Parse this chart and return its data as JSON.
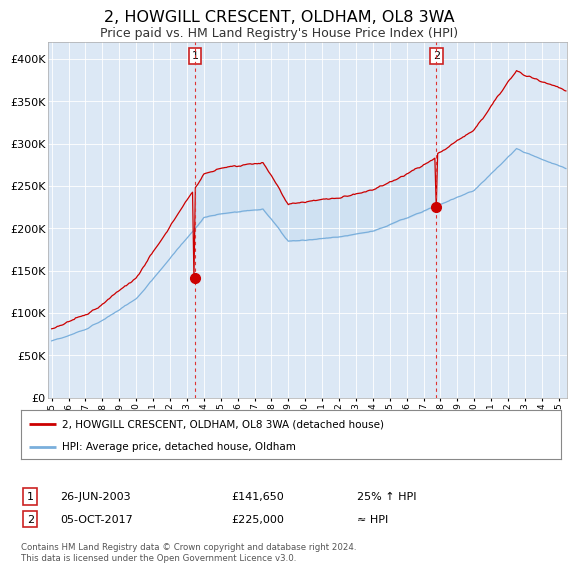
{
  "title": "2, HOWGILL CRESCENT, OLDHAM, OL8 3WA",
  "subtitle": "Price paid vs. HM Land Registry's House Price Index (HPI)",
  "title_fontsize": 11.5,
  "subtitle_fontsize": 9,
  "background_color": "#ffffff",
  "plot_bg_color": "#dce8f5",
  "ylim": [
    0,
    420000
  ],
  "yticks": [
    0,
    50000,
    100000,
    150000,
    200000,
    250000,
    300000,
    350000,
    400000
  ],
  "ytick_labels": [
    "£0",
    "£50K",
    "£100K",
    "£150K",
    "£200K",
    "£250K",
    "£300K",
    "£350K",
    "£400K"
  ],
  "red_line_color": "#cc0000",
  "blue_line_color": "#7aafdc",
  "fill_color": "#ccdff0",
  "dashed_line_color": "#dd3333",
  "legend_line1": "2, HOWGILL CRESCENT, OLDHAM, OL8 3WA (detached house)",
  "legend_line2": "HPI: Average price, detached house, Oldham",
  "footer": "Contains HM Land Registry data © Crown copyright and database right 2024.\nThis data is licensed under the Open Government Licence v3.0.",
  "xstart_year": 1995,
  "xend_year": 2025,
  "point1_year": 2003.49,
  "point1_price": 141650,
  "point2_year": 2017.75,
  "point2_price": 225000
}
